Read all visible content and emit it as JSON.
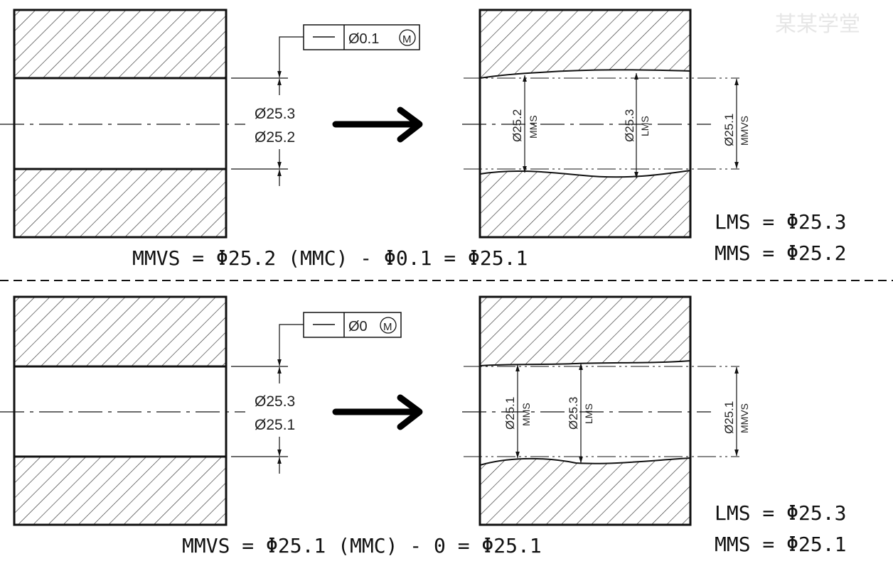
{
  "watermark": "某某学堂",
  "panels": [
    {
      "fcf": {
        "symbol": "—",
        "tolerance": "Ø0.1",
        "modifier": "M"
      },
      "dim_upper": "Ø25.3",
      "dim_lower": "Ø25.2",
      "mms_dim": "Ø25.2",
      "mms_label": "MMS",
      "lms_dim": "Ø25.3",
      "lms_label": "LMS",
      "mmvs_dim": "Ø25.1",
      "mmvs_label": "MMVS",
      "formula": "MMVS = Φ25.2 (MMC) - Φ0.1 = Φ25.1",
      "lms_eq": "LMS = Φ25.3",
      "mms_eq": "MMS = Φ25.2"
    },
    {
      "fcf": {
        "symbol": "—",
        "tolerance": "Ø0",
        "modifier": "M"
      },
      "dim_upper": "Ø25.3",
      "dim_lower": "Ø25.1",
      "mms_dim": "Ø25.1",
      "mms_label": "MMS",
      "lms_dim": "Ø25.3",
      "lms_label": "LMS",
      "mmvs_dim": "Ø25.1",
      "mmvs_label": "MMVS",
      "formula": "MMVS = Φ25.1 (MMC) - 0 = Φ25.1",
      "lms_eq": "LMS = Φ25.3",
      "mms_eq": "MMS = Φ25.1"
    }
  ]
}
